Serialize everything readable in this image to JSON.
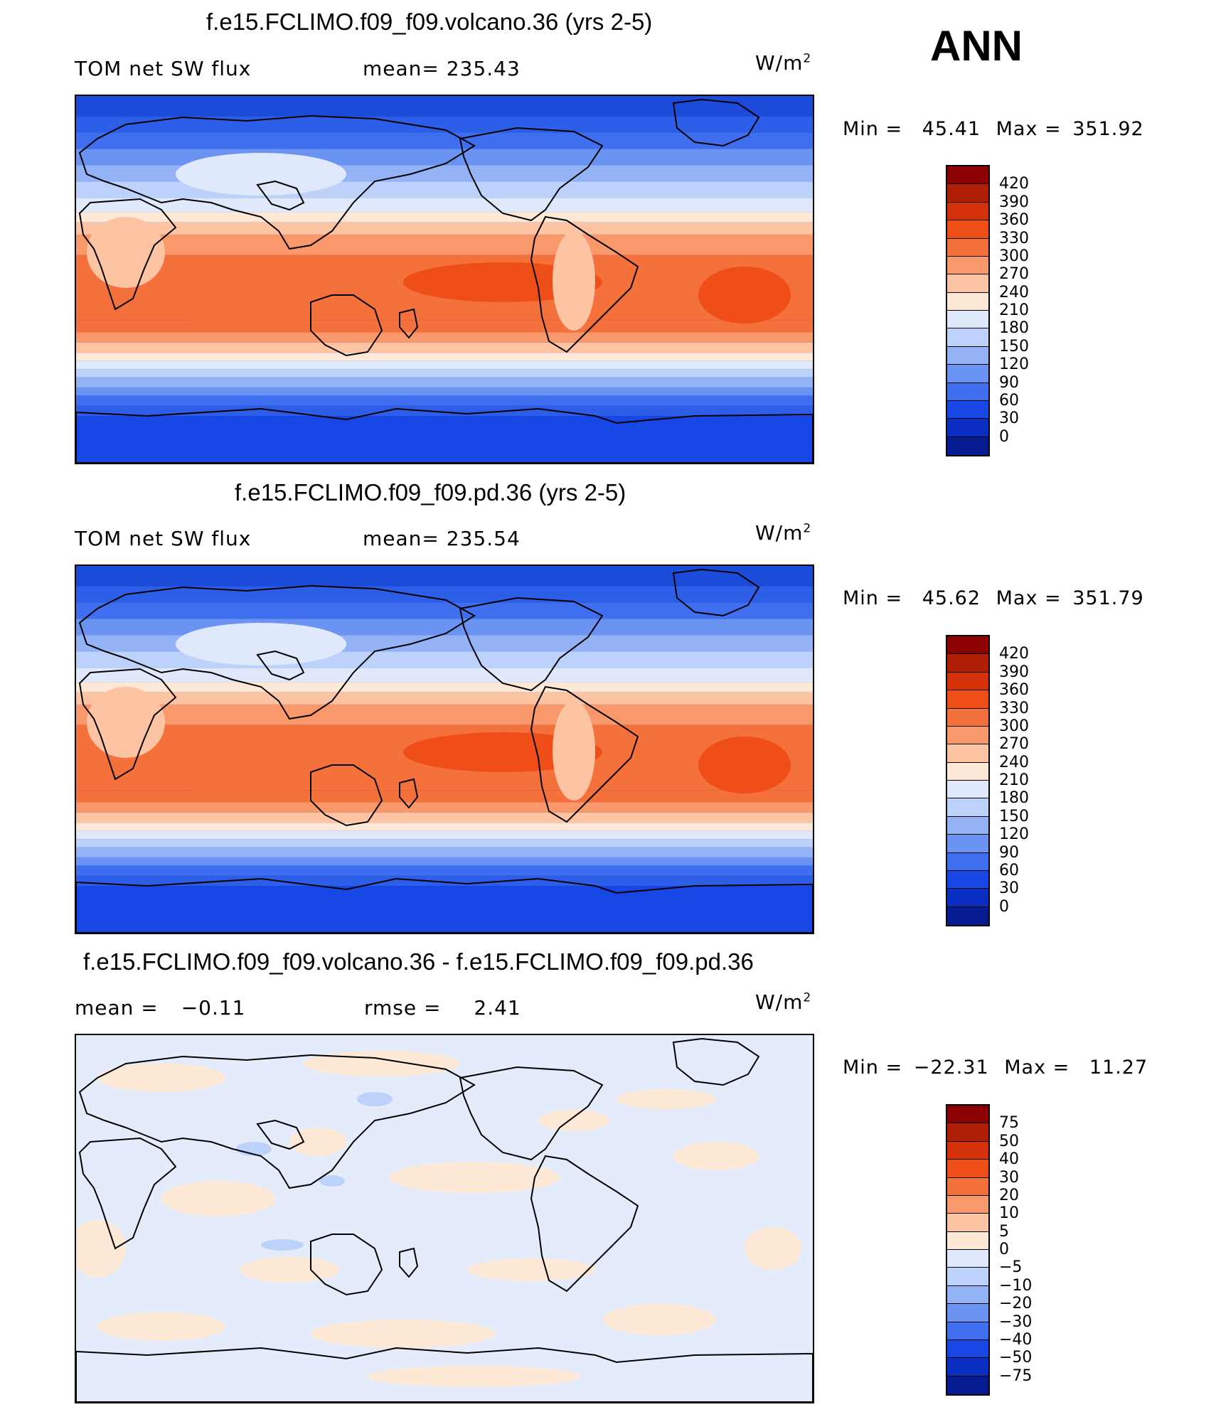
{
  "season": "ANN",
  "panels": [
    {
      "title": "f.e15.FCLIMO.f09_f09.volcano.36 (yrs 2-5)",
      "variable": "TOM net SW flux",
      "stat_label": "mean=",
      "stat_value": "235.43",
      "unit_base": "W/m",
      "unit_exp": "2",
      "min_label": "Min  =",
      "min_value": "45.41",
      "max_label": "Max  =",
      "max_value": "351.92",
      "colorbar_labels": [
        "420",
        "390",
        "360",
        "330",
        "300",
        "270",
        "240",
        "210",
        "180",
        "150",
        "120",
        "90",
        "60",
        "30",
        "0"
      ]
    },
    {
      "title": "f.e15.FCLIMO.f09_f09.pd.36 (yrs 2-5)",
      "variable": "TOM net SW flux",
      "stat_label": "mean=",
      "stat_value": "235.54",
      "unit_base": "W/m",
      "unit_exp": "2",
      "min_label": "Min  =",
      "min_value": "45.62",
      "max_label": "Max  =",
      "max_value": "351.79",
      "colorbar_labels": [
        "420",
        "390",
        "360",
        "330",
        "300",
        "270",
        "240",
        "210",
        "180",
        "150",
        "120",
        "90",
        "60",
        "30",
        "0"
      ]
    },
    {
      "title": "f.e15.FCLIMO.f09_f09.volcano.36 - f.e15.FCLIMO.f09_f09.pd.36",
      "mean_label": "mean  =",
      "mean_value": "−0.11",
      "rmse_label": "rmse  =",
      "rmse_value": "2.41",
      "unit_base": "W/m",
      "unit_exp": "2",
      "min_label": "Min  =",
      "min_value": "−22.31",
      "max_label": "Max  =",
      "max_value": "11.27",
      "colorbar_labels": [
        "75",
        "50",
        "40",
        "30",
        "20",
        "10",
        "5",
        "0",
        "−5",
        "−10",
        "−20",
        "−30",
        "−40",
        "−50",
        "−75"
      ]
    }
  ],
  "colors": {
    "abs_scale": [
      "#8b0000",
      "#b01e05",
      "#d4300a",
      "#f04e18",
      "#f5713c",
      "#f9996b",
      "#fcc4a2",
      "#fde9d6",
      "#dfe9fb",
      "#bdd2fa",
      "#94b3f6",
      "#6a93f2",
      "#3f6fee",
      "#1747e4",
      "#0a2ec2",
      "#051b8f"
    ],
    "diff_scale": [
      "#8b0000",
      "#b01e05",
      "#d4300a",
      "#f04e18",
      "#f5713c",
      "#f9996b",
      "#fcc4a2",
      "#fde9d6",
      "#dfe9fb",
      "#bdd2fa",
      "#94b3f6",
      "#6a93f2",
      "#3f6fee",
      "#1747e4",
      "#0a2ec2",
      "#051b8f"
    ],
    "land_outline": "#000000"
  },
  "chart_data": [
    {
      "type": "heatmap",
      "title": "f.e15.FCLIMO.f09_f09.volcano.36 (yrs 2-5)",
      "field": "TOM net SW flux",
      "units": "W/m2",
      "mean": 235.43,
      "min": 45.41,
      "max": 351.92,
      "contour_levels": [
        0,
        30,
        60,
        90,
        120,
        150,
        180,
        210,
        240,
        270,
        300,
        330,
        360,
        390,
        420
      ],
      "projection": "global cylindrical equidistant, 180-centered",
      "zonal_profile": {
        "lat": [
          90,
          75,
          60,
          45,
          30,
          15,
          0,
          -15,
          -30,
          -45,
          -60,
          -75,
          -90
        ],
        "value": [
          60,
          85,
          120,
          175,
          260,
          300,
          290,
          295,
          250,
          160,
          90,
          45,
          45
        ]
      }
    },
    {
      "type": "heatmap",
      "title": "f.e15.FCLIMO.f09_f09.pd.36 (yrs 2-5)",
      "field": "TOM net SW flux",
      "units": "W/m2",
      "mean": 235.54,
      "min": 45.62,
      "max": 351.79,
      "contour_levels": [
        0,
        30,
        60,
        90,
        120,
        150,
        180,
        210,
        240,
        270,
        300,
        330,
        360,
        390,
        420
      ],
      "projection": "global cylindrical equidistant, 180-centered",
      "zonal_profile": {
        "lat": [
          90,
          75,
          60,
          45,
          30,
          15,
          0,
          -15,
          -30,
          -45,
          -60,
          -75,
          -90
        ],
        "value": [
          60,
          85,
          120,
          175,
          260,
          300,
          290,
          295,
          250,
          160,
          90,
          45,
          45
        ]
      }
    },
    {
      "type": "heatmap",
      "title": "f.e15.FCLIMO.f09_f09.volcano.36 - f.e15.FCLIMO.f09_f09.pd.36",
      "field": "TOM net SW flux difference",
      "units": "W/m2",
      "mean": -0.11,
      "rmse": 2.41,
      "min": -22.31,
      "max": 11.27,
      "contour_levels": [
        -75,
        -50,
        -40,
        -30,
        -20,
        -10,
        -5,
        0,
        5,
        10,
        20,
        30,
        40,
        50,
        75
      ]
    }
  ]
}
